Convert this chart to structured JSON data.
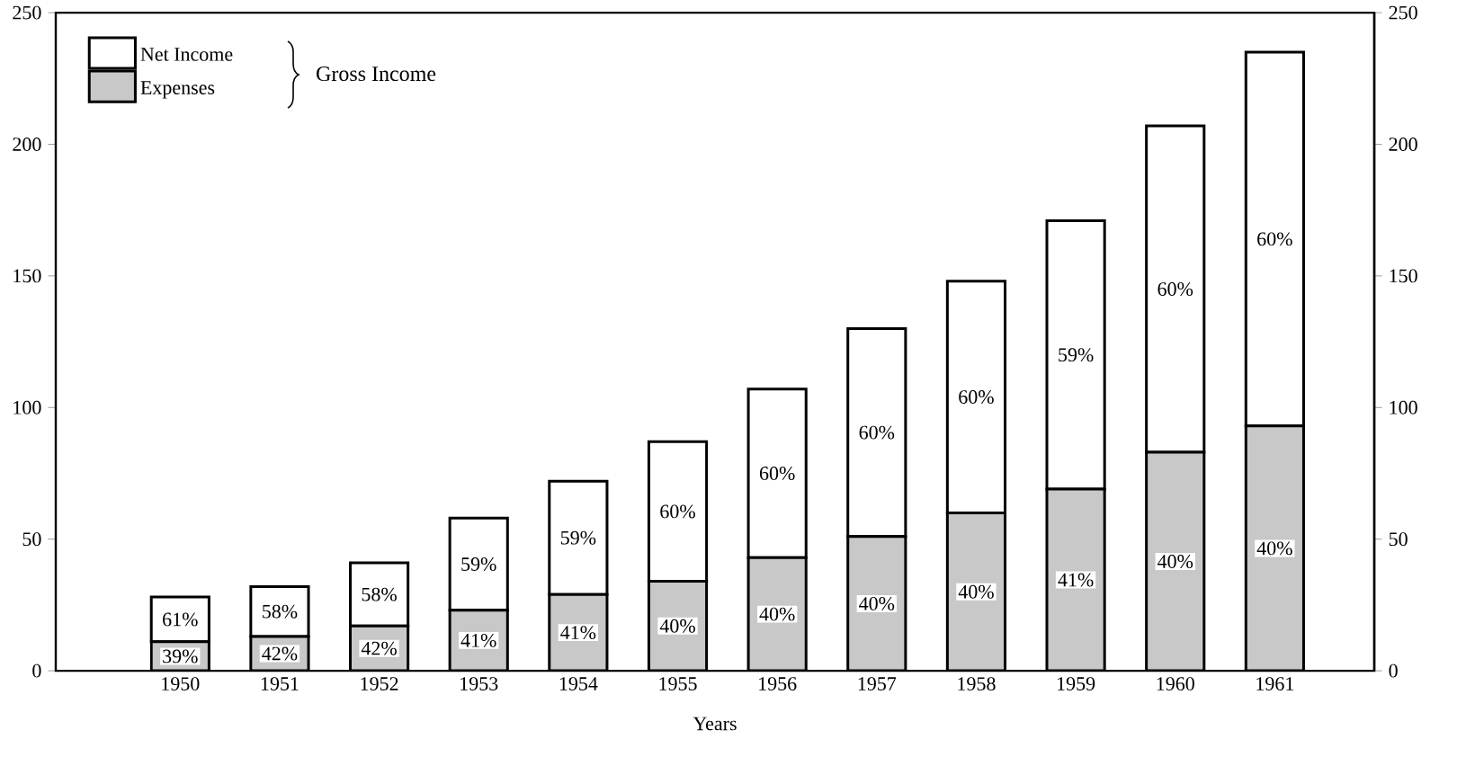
{
  "chart_data": {
    "type": "bar",
    "stacked": true,
    "xlabel": "Years",
    "categories": [
      "1950",
      "1951",
      "1952",
      "1953",
      "1954",
      "1955",
      "1956",
      "1957",
      "1958",
      "1959",
      "1960",
      "1961"
    ],
    "series": [
      {
        "name": "Expenses",
        "color": "#c8c8c8",
        "values": [
          11,
          13,
          17,
          23,
          29,
          34,
          43,
          51,
          60,
          69,
          83,
          93
        ]
      },
      {
        "name": "Net Income",
        "color": "#ffffff",
        "values": [
          17,
          19,
          24,
          35,
          43,
          53,
          64,
          79,
          88,
          102,
          124,
          142
        ]
      }
    ],
    "ylim": [
      0,
      250
    ],
    "yticks": [
      0,
      50,
      100,
      150,
      200,
      250
    ],
    "y2lim": [
      0,
      250
    ],
    "y2ticks": [
      0,
      50,
      100,
      150,
      200,
      250
    ],
    "legend": "top left",
    "annotations": [
      "Gross Income",
      "39%",
      "42%",
      "42%",
      "41%",
      "41%",
      "40%",
      "40%",
      "40%",
      "40%",
      "41%",
      "40%",
      "40%",
      "61%",
      "58%",
      "58%",
      "59%",
      "59%",
      "60%",
      "60%",
      "60%",
      "60%",
      "59%",
      "60%",
      "60%"
    ]
  }
}
